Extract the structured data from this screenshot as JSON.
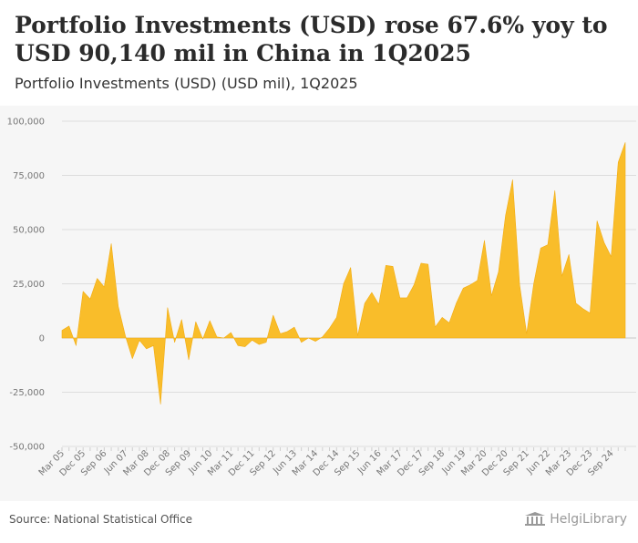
{
  "header": {
    "title": "Portfolio Investments (USD) rose 67.6% yoy to USD 90,140 mil in China in 1Q2025",
    "subtitle": "Portfolio Investments (USD) (USD mil), 1Q2025"
  },
  "footer": {
    "source": "Source: National Statistical Office",
    "brand": "HelgiLibrary",
    "brand_icon": "building-columns-icon"
  },
  "colors": {
    "area_fill": "#f9bd2a",
    "area_stroke": "#f2ac12",
    "grid": "#dddddd",
    "zero_line": "#c8c8c8",
    "plot_bg": "#f6f6f6"
  },
  "chart_data": {
    "type": "area",
    "title": "Portfolio Investments (USD) rose 67.6% yoy to USD 90,140 mil in China in 1Q2025",
    "subtitle": "Portfolio Investments (USD) (USD mil), 1Q2025",
    "xlabel": "",
    "ylabel": "",
    "ylim": [
      -50000,
      100000
    ],
    "yticks": [
      100000,
      75000,
      50000,
      25000,
      0,
      -25000,
      -50000
    ],
    "ytick_labels": [
      "100,000",
      "75,000",
      "50,000",
      "25,000",
      "0",
      "-25,000",
      "-50,000"
    ],
    "grid": true,
    "xtick_labels": [
      "Mar 05",
      "Dec 05",
      "Sep 06",
      "Jun 07",
      "Mar 08",
      "Dec 08",
      "Sep 09",
      "Jun 10",
      "Mar 11",
      "Dec 11",
      "Sep 12",
      "Jun 13",
      "Mar 14",
      "Dec 14",
      "Sep 15",
      "Jun 16",
      "Mar 17",
      "Dec 17",
      "Sep 18",
      "Jun 19",
      "Mar 20",
      "Dec 20",
      "Sep 21",
      "Jun 22",
      "Mar 23",
      "Dec 23",
      "Sep 24"
    ],
    "xtick_indices": [
      0,
      3,
      6,
      9,
      12,
      15,
      18,
      21,
      24,
      27,
      30,
      33,
      36,
      39,
      42,
      45,
      48,
      51,
      54,
      57,
      60,
      63,
      66,
      69,
      72,
      75,
      78
    ],
    "x_start": "1Q2005",
    "x_end": "1Q2025",
    "series": [
      {
        "name": "Portfolio Investments (USD)",
        "values": [
          3500,
          5500,
          -3500,
          21500,
          18000,
          27500,
          23500,
          43500,
          14500,
          1000,
          -9500,
          -1000,
          -5000,
          -3500,
          -30500,
          14000,
          -2000,
          8500,
          -10000,
          7500,
          -500,
          8000,
          500,
          0,
          2500,
          -3500,
          -4000,
          -1000,
          -3000,
          -2000,
          10500,
          2000,
          3000,
          5000,
          -2000,
          0,
          -1500,
          500,
          4500,
          9500,
          25000,
          32500,
          1000,
          16000,
          21000,
          15500,
          33500,
          33000,
          18500,
          18500,
          24500,
          34500,
          34000,
          5000,
          9500,
          7000,
          16000,
          23000,
          24500,
          26500,
          45000,
          19500,
          30500,
          56500,
          73000,
          24500,
          2000,
          25000,
          41500,
          43000,
          68000,
          28500,
          38500,
          16000,
          13500,
          11500,
          54000,
          44000,
          37500,
          81000,
          90140
        ]
      }
    ]
  }
}
